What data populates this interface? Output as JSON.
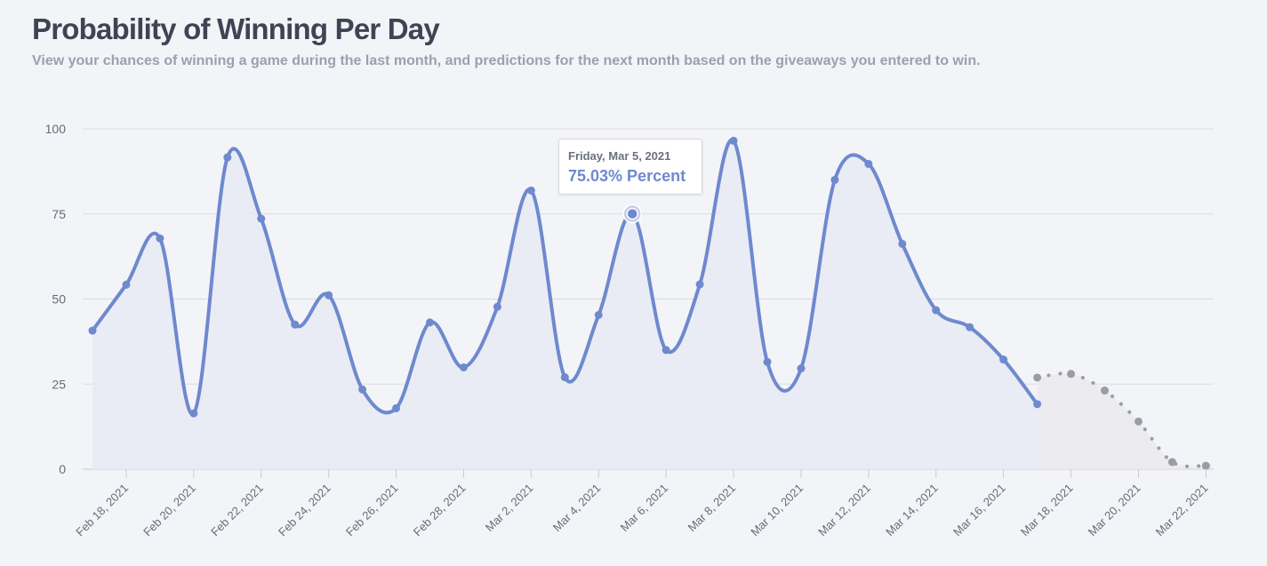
{
  "header": {
    "title": "Probability of Winning Per Day",
    "subtitle": "View your chances of winning a game during the last month, and predictions for the next month based on the giveaways you entered to win."
  },
  "tooltip": {
    "date": "Friday, Mar 5, 2021",
    "value": "75.03% Percent"
  },
  "colors": {
    "actual_line": "#6e89ce",
    "actual_fill": "#e8eaf4",
    "prediction_line": "#9a9ca8",
    "prediction_fill": "#e9e9ee",
    "grid": "#d9dbe3"
  },
  "chart_data": {
    "type": "area",
    "x_start": "2021-02-17",
    "x_labels": [
      "Feb 18, 2021",
      "Feb 20, 2021",
      "Feb 22, 2021",
      "Feb 24, 2021",
      "Feb 26, 2021",
      "Feb 28, 2021",
      "Mar 2, 2021",
      "Mar 4, 2021",
      "Mar 6, 2021",
      "Mar 8, 2021",
      "Mar 10, 2021",
      "Mar 12, 2021",
      "Mar 14, 2021",
      "Mar 16, 2021",
      "Mar 18, 2021",
      "Mar 20, 2021",
      "Mar 22, 2021"
    ],
    "y_ticks": [
      0,
      25,
      50,
      75,
      100
    ],
    "ylim": [
      0,
      100
    ],
    "grid": true,
    "series": [
      {
        "style": "solid",
        "x": [
          "2021-02-17",
          "2021-02-18",
          "2021-02-19",
          "2021-02-20",
          "2021-02-21",
          "2021-02-22",
          "2021-02-23",
          "2021-02-24",
          "2021-02-25",
          "2021-02-26",
          "2021-02-27",
          "2021-02-28",
          "2021-03-01",
          "2021-03-02",
          "2021-03-03",
          "2021-03-04",
          "2021-03-05",
          "2021-03-06",
          "2021-03-07",
          "2021-03-08",
          "2021-03-09",
          "2021-03-10",
          "2021-03-11",
          "2021-03-12",
          "2021-03-13",
          "2021-03-14",
          "2021-03-15",
          "2021-03-16",
          "2021-03-17"
        ],
        "values": [
          40.7,
          54.2,
          67.8,
          16.4,
          91.6,
          73.6,
          42.5,
          51.1,
          23.4,
          17.9,
          43.1,
          29.9,
          47.7,
          81.9,
          27.0,
          45.3,
          75.03,
          35.0,
          54.3,
          96.5,
          31.5,
          29.6,
          85.0,
          89.7,
          66.2,
          46.7,
          41.7,
          32.2,
          19.1
        ]
      },
      {
        "style": "dotted",
        "x": [
          "2021-03-17",
          "2021-03-18",
          "2021-03-19",
          "2021-03-20",
          "2021-03-21",
          "2021-03-22"
        ],
        "values": [
          26.9,
          28.0,
          23.1,
          14.0,
          2.1,
          1.0
        ]
      }
    ],
    "highlight": {
      "x": "2021-03-05",
      "value": 75.03
    }
  }
}
